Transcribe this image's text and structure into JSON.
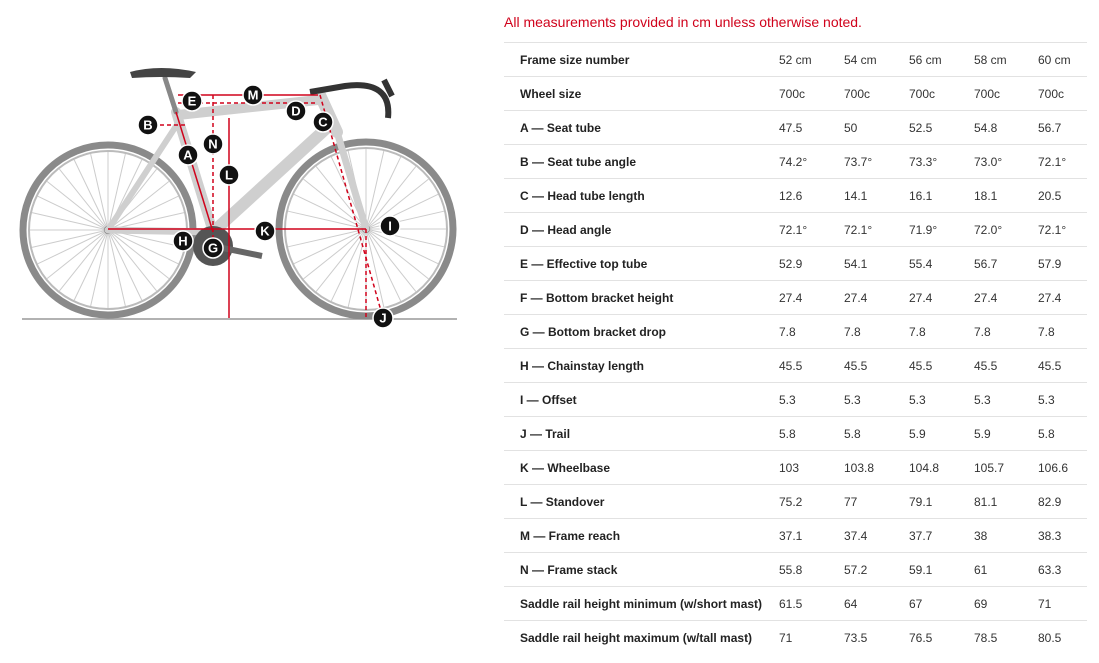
{
  "note": "All measurements provided in cm unless otherwise noted.",
  "diagram": {
    "labels": [
      "E",
      "M",
      "D",
      "C",
      "B",
      "N",
      "A",
      "L",
      "K",
      "I",
      "H",
      "G",
      "J"
    ]
  },
  "table": {
    "header": [
      "Frame size number",
      "52 cm",
      "54 cm",
      "56 cm",
      "58 cm",
      "60 cm"
    ],
    "rows": [
      [
        "Wheel size",
        "700c",
        "700c",
        "700c",
        "700c",
        "700c"
      ],
      [
        "A — Seat tube",
        "47.5",
        "50",
        "52.5",
        "54.8",
        "56.7"
      ],
      [
        "B — Seat tube angle",
        "74.2°",
        "73.7°",
        "73.3°",
        "73.0°",
        "72.1°"
      ],
      [
        "C — Head tube length",
        "12.6",
        "14.1",
        "16.1",
        "18.1",
        "20.5"
      ],
      [
        "D — Head angle",
        "72.1°",
        "72.1°",
        "71.9°",
        "72.0°",
        "72.1°"
      ],
      [
        "E — Effective top tube",
        "52.9",
        "54.1",
        "55.4",
        "56.7",
        "57.9"
      ],
      [
        "F — Bottom bracket height",
        "27.4",
        "27.4",
        "27.4",
        "27.4",
        "27.4"
      ],
      [
        "G — Bottom bracket drop",
        "7.8",
        "7.8",
        "7.8",
        "7.8",
        "7.8"
      ],
      [
        "H — Chainstay length",
        "45.5",
        "45.5",
        "45.5",
        "45.5",
        "45.5"
      ],
      [
        "I — Offset",
        "5.3",
        "5.3",
        "5.3",
        "5.3",
        "5.3"
      ],
      [
        "J — Trail",
        "5.8",
        "5.8",
        "5.9",
        "5.9",
        "5.8"
      ],
      [
        "K — Wheelbase",
        "103",
        "103.8",
        "104.8",
        "105.7",
        "106.6"
      ],
      [
        "L — Standover",
        "75.2",
        "77",
        "79.1",
        "81.1",
        "82.9"
      ],
      [
        "M — Frame reach",
        "37.1",
        "37.4",
        "37.7",
        "38",
        "38.3"
      ],
      [
        "N — Frame stack",
        "55.8",
        "57.2",
        "59.1",
        "61",
        "63.3"
      ],
      [
        "Saddle rail height minimum (w/short mast)",
        "61.5",
        "64",
        "67",
        "69",
        "71"
      ],
      [
        "Saddle rail height maximum (w/tall mast)",
        "71",
        "73.5",
        "76.5",
        "78.5",
        "80.5"
      ]
    ]
  }
}
